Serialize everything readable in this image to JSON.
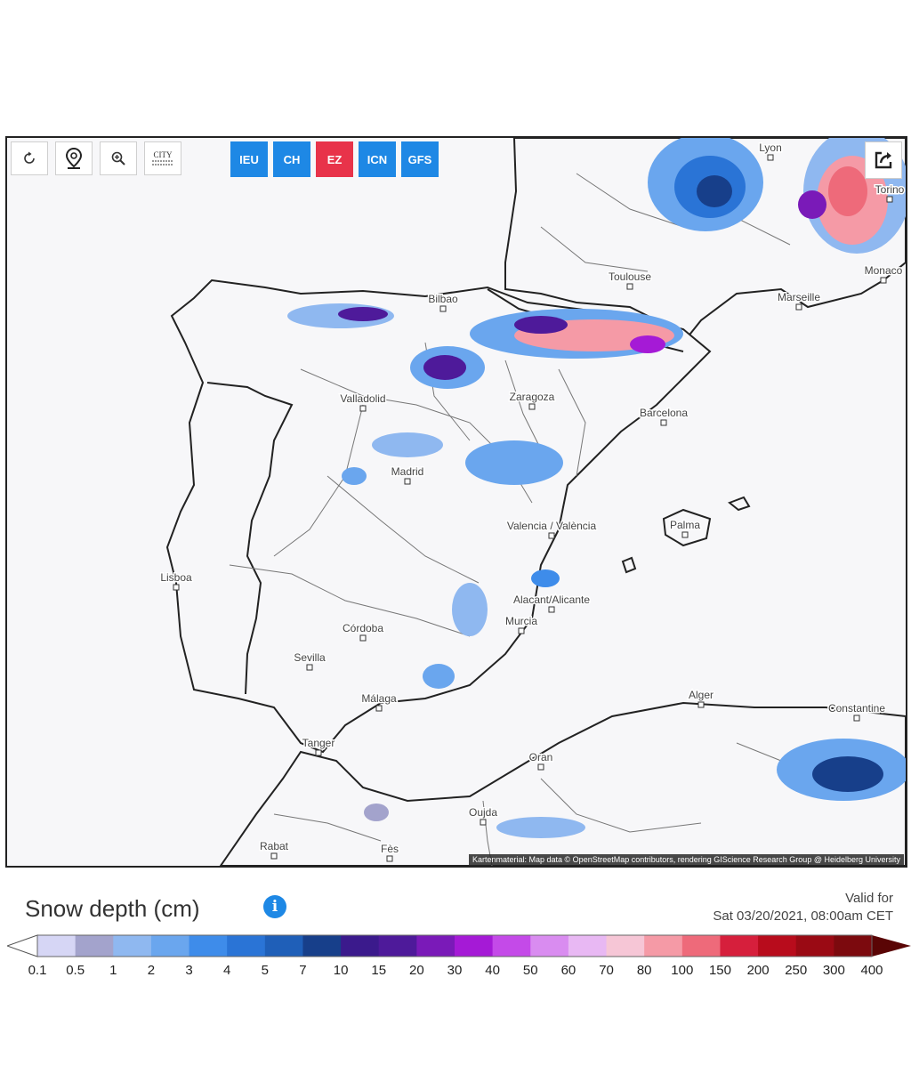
{
  "toolbar": {
    "buttons": [
      {
        "name": "refresh-icon"
      },
      {
        "name": "location-pin-icon"
      },
      {
        "name": "zoom-icon"
      },
      {
        "name": "city-labels-icon",
        "label": "CITY"
      }
    ]
  },
  "models": [
    {
      "label": "IEU",
      "active": false
    },
    {
      "label": "CH",
      "active": false
    },
    {
      "label": "EZ",
      "active": true
    },
    {
      "label": "ICN",
      "active": false
    },
    {
      "label": "GFS",
      "active": false
    }
  ],
  "share_icon": "share-icon",
  "cities": [
    {
      "name": "Lyon"
    },
    {
      "name": "Torino"
    },
    {
      "name": "Toulouse"
    },
    {
      "name": "Monaco"
    },
    {
      "name": "Marseille"
    },
    {
      "name": "Bilbao"
    },
    {
      "name": "Zaragoza"
    },
    {
      "name": "Valladolid"
    },
    {
      "name": "Barcelona"
    },
    {
      "name": "Madrid"
    },
    {
      "name": "Valencia / València"
    },
    {
      "name": "Palma"
    },
    {
      "name": "Lisboa"
    },
    {
      "name": "Alacant/Alicante"
    },
    {
      "name": "Murcia"
    },
    {
      "name": "Córdoba"
    },
    {
      "name": "Sevilla"
    },
    {
      "name": "Málaga"
    },
    {
      "name": "Alger"
    },
    {
      "name": "Constantine"
    },
    {
      "name": "Tanger"
    },
    {
      "name": "Oran"
    },
    {
      "name": "Oujda"
    },
    {
      "name": "Rabat"
    },
    {
      "name": "Fès"
    }
  ],
  "attribution": "Kartenmaterial: Map data © OpenStreetMap contributors, rendering GIScience Research Group @ Heidelberg University",
  "legend": {
    "title": "Snow depth (cm)",
    "unit": "cm",
    "valid_label": "Valid for",
    "valid_time": "Sat 03/20/2021, 08:00am CET",
    "ticks": [
      "0.1",
      "0.5",
      "1",
      "2",
      "3",
      "4",
      "5",
      "7",
      "10",
      "15",
      "20",
      "30",
      "40",
      "50",
      "60",
      "70",
      "80",
      "100",
      "150",
      "200",
      "250",
      "300",
      "400"
    ],
    "colors": [
      "#d6d6f5",
      "#a3a3cc",
      "#8fb8f0",
      "#6aa6ee",
      "#3e8cea",
      "#2a74d6",
      "#1f5fb8",
      "#173f8a",
      "#3b1a8c",
      "#4e1a9a",
      "#7a1ab8",
      "#a51ad6",
      "#c44ae8",
      "#d98cf0",
      "#e8b8f3",
      "#f6c6d6",
      "#f59aa6",
      "#ee6a7a",
      "#d61f3c",
      "#b80c1c",
      "#9a0a14",
      "#7c0a0e"
    ],
    "under_color": "#ffffff",
    "over_color": "#5a0505"
  }
}
